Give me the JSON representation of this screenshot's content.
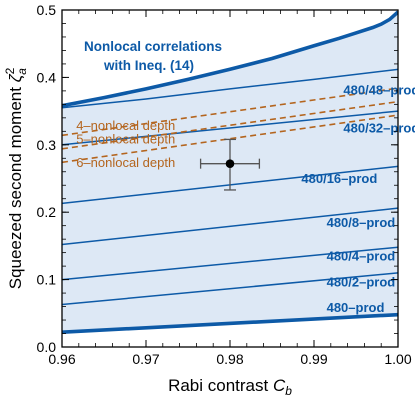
{
  "chart_data": {
    "type": "line",
    "title": "",
    "xlabel": {
      "main": "Rabi contrast ",
      "var": "C",
      "sub": "b"
    },
    "ylabel": {
      "main": "Squeezed second moment ",
      "var": "ζ",
      "sup": "2",
      "sub": "a"
    },
    "xlim": [
      0.96,
      1.0
    ],
    "ylim": [
      0.0,
      0.5
    ],
    "xticks": [
      0.96,
      0.97,
      0.98,
      0.99,
      1.0
    ],
    "xtick_labels": [
      "0.96",
      "0.97",
      "0.98",
      "0.99",
      "1.00"
    ],
    "yticks": [
      0.0,
      0.1,
      0.2,
      0.3,
      0.4,
      0.5
    ],
    "ytick_labels": [
      "0.0",
      "0.1",
      "0.2",
      "0.3",
      "0.4",
      "0.5"
    ],
    "grid": false,
    "colors": {
      "boundary": "#0d5aa7",
      "fill": "#dde8f5",
      "depth": "#b4651e",
      "point": "#000000",
      "errorbar": "#555555"
    },
    "bound_upper": {
      "name": "Nonlocal correlations with Ineq. (14)",
      "label_lines": [
        "Nonlocal correlations",
        "with Ineq. (14)"
      ],
      "x": [
        0.96,
        0.965,
        0.97,
        0.975,
        0.98,
        0.985,
        0.99,
        0.993,
        0.995,
        0.997,
        0.998,
        0.999,
        1.0
      ],
      "y": [
        0.358,
        0.37,
        0.383,
        0.397,
        0.412,
        0.428,
        0.447,
        0.458,
        0.466,
        0.474,
        0.479,
        0.486,
        0.497
      ]
    },
    "bound_lower": {
      "name": "480–prod",
      "x": [
        0.96,
        1.0
      ],
      "y": [
        0.022,
        0.048
      ]
    },
    "series": [
      {
        "name": "480/48–prod",
        "x": [
          0.96,
          0.97,
          0.98,
          0.99,
          1.0
        ],
        "y": [
          0.355,
          0.368,
          0.383,
          0.397,
          0.412
        ]
      },
      {
        "name": "480/32–prod",
        "x": [
          0.96,
          1.0
        ],
        "y": [
          0.3,
          0.35
        ]
      },
      {
        "name": "480/16–prod",
        "x": [
          0.96,
          1.0
        ],
        "y": [
          0.213,
          0.268
        ]
      },
      {
        "name": "480/8–prod",
        "x": [
          0.96,
          1.0
        ],
        "y": [
          0.152,
          0.206
        ]
      },
      {
        "name": "480/4–prod",
        "x": [
          0.96,
          1.0
        ],
        "y": [
          0.1,
          0.148
        ]
      },
      {
        "name": "480/2–prod",
        "x": [
          0.96,
          1.0
        ],
        "y": [
          0.063,
          0.11
        ]
      }
    ],
    "series_labels": [
      {
        "text": "480/48–prod",
        "x": 0.9935,
        "y": 0.375
      },
      {
        "text": "480/32–prod",
        "x": 0.9935,
        "y": 0.318
      },
      {
        "text": "480/16–prod",
        "x": 0.9885,
        "y": 0.243
      },
      {
        "text": "480/8–prod",
        "x": 0.9915,
        "y": 0.178
      },
      {
        "text": "480/4–prod",
        "x": 0.9915,
        "y": 0.128
      },
      {
        "text": "480/2–prod",
        "x": 0.9915,
        "y": 0.09
      },
      {
        "text": "480–prod",
        "x": 0.9915,
        "y": 0.052
      }
    ],
    "depth_series": [
      {
        "name": "4–nonlocal depth",
        "x": [
          0.96,
          1.0
        ],
        "y": [
          0.314,
          0.384
        ]
      },
      {
        "name": "5–nonlocal depth",
        "x": [
          0.96,
          1.0
        ],
        "y": [
          0.294,
          0.364
        ]
      },
      {
        "name": "6–nonlocal depth",
        "x": [
          0.96,
          1.0
        ],
        "y": [
          0.274,
          0.344
        ]
      }
    ],
    "depth_labels": [
      {
        "text": "4–nonlocal depth",
        "x": 0.9605,
        "y": 0.322
      },
      {
        "text": "5–nonlocal depth",
        "x": 0.9605,
        "y": 0.302
      },
      {
        "text": "6–nonlocal depth",
        "x": 0.9605,
        "y": 0.267
      }
    ],
    "data_point": {
      "x": 0.98,
      "y": 0.272,
      "xerr": 0.0035,
      "yerr_low": 0.039,
      "yerr_high": 0.036
    }
  }
}
